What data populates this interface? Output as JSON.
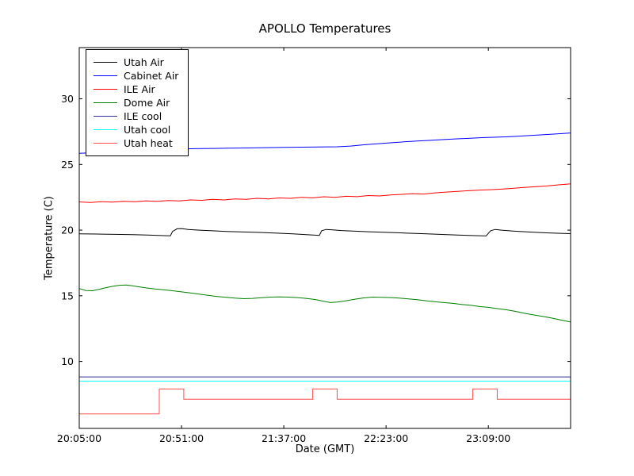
{
  "chart_data": {
    "type": "line",
    "title": "APOLLO Temperatures",
    "xlabel": "Date (GMT)",
    "ylabel": "Temperature (C)",
    "x_unit": "minutes after 20:05:00 GMT",
    "xlim": [
      0,
      221
    ],
    "ylim": [
      4.9,
      33.9
    ],
    "grid": false,
    "legend_position": "upper left",
    "frame_color": "#000000",
    "x_ticks": [
      {
        "pos": 0,
        "label": "20:05:00"
      },
      {
        "pos": 46,
        "label": "20:51:00"
      },
      {
        "pos": 92,
        "label": "21:37:00"
      },
      {
        "pos": 138,
        "label": "22:23:00"
      },
      {
        "pos": 184,
        "label": "23:09:00"
      }
    ],
    "y_ticks": [
      {
        "pos": 10,
        "label": "10"
      },
      {
        "pos": 15,
        "label": "15"
      },
      {
        "pos": 20,
        "label": "20"
      },
      {
        "pos": 25,
        "label": "25"
      },
      {
        "pos": 30,
        "label": "30"
      }
    ],
    "series": [
      {
        "name": "Utah Air",
        "color": "#000000",
        "points": [
          [
            0,
            19.72
          ],
          [
            8,
            19.7
          ],
          [
            16,
            19.68
          ],
          [
            24,
            19.66
          ],
          [
            32,
            19.62
          ],
          [
            38,
            19.58
          ],
          [
            41,
            19.57
          ],
          [
            42,
            19.9
          ],
          [
            44,
            20.1
          ],
          [
            46,
            20.12
          ],
          [
            49,
            20.05
          ],
          [
            54,
            20.0
          ],
          [
            60,
            19.95
          ],
          [
            66,
            19.9
          ],
          [
            72,
            19.87
          ],
          [
            80,
            19.83
          ],
          [
            88,
            19.78
          ],
          [
            96,
            19.72
          ],
          [
            102,
            19.66
          ],
          [
            106,
            19.62
          ],
          [
            108,
            19.6
          ],
          [
            109,
            19.95
          ],
          [
            111,
            20.05
          ],
          [
            114,
            20.02
          ],
          [
            118,
            19.97
          ],
          [
            124,
            19.92
          ],
          [
            130,
            19.88
          ],
          [
            138,
            19.83
          ],
          [
            146,
            19.78
          ],
          [
            154,
            19.73
          ],
          [
            162,
            19.68
          ],
          [
            170,
            19.63
          ],
          [
            178,
            19.58
          ],
          [
            183,
            19.56
          ],
          [
            185,
            19.95
          ],
          [
            187,
            20.05
          ],
          [
            190,
            20.0
          ],
          [
            195,
            19.93
          ],
          [
            202,
            19.86
          ],
          [
            209,
            19.8
          ],
          [
            215,
            19.76
          ],
          [
            221,
            19.73
          ]
        ]
      },
      {
        "name": "Cabinet Air",
        "color": "#0000ff",
        "points": [
          [
            0,
            25.85
          ],
          [
            4,
            25.88
          ],
          [
            8,
            25.9
          ],
          [
            12,
            25.98
          ],
          [
            16,
            26.02
          ],
          [
            22,
            26.06
          ],
          [
            28,
            26.1
          ],
          [
            34,
            26.13
          ],
          [
            40,
            26.16
          ],
          [
            46,
            26.18
          ],
          [
            52,
            26.2
          ],
          [
            60,
            26.22
          ],
          [
            68,
            26.24
          ],
          [
            76,
            26.26
          ],
          [
            84,
            26.28
          ],
          [
            92,
            26.3
          ],
          [
            100,
            26.32
          ],
          [
            108,
            26.33
          ],
          [
            116,
            26.35
          ],
          [
            122,
            26.4
          ],
          [
            128,
            26.5
          ],
          [
            134,
            26.58
          ],
          [
            140,
            26.65
          ],
          [
            146,
            26.72
          ],
          [
            152,
            26.78
          ],
          [
            158,
            26.84
          ],
          [
            164,
            26.9
          ],
          [
            170,
            26.95
          ],
          [
            176,
            27.0
          ],
          [
            182,
            27.05
          ],
          [
            188,
            27.08
          ],
          [
            194,
            27.12
          ],
          [
            200,
            27.18
          ],
          [
            206,
            27.24
          ],
          [
            212,
            27.3
          ],
          [
            217,
            27.35
          ],
          [
            221,
            27.4
          ]
        ]
      },
      {
        "name": "ILE Air",
        "color": "#ff0000",
        "points": [
          [
            0,
            22.15
          ],
          [
            5,
            22.1
          ],
          [
            10,
            22.17
          ],
          [
            15,
            22.13
          ],
          [
            20,
            22.2
          ],
          [
            25,
            22.16
          ],
          [
            30,
            22.22
          ],
          [
            35,
            22.19
          ],
          [
            40,
            22.26
          ],
          [
            45,
            22.22
          ],
          [
            50,
            22.3
          ],
          [
            55,
            22.27
          ],
          [
            60,
            22.34
          ],
          [
            65,
            22.3
          ],
          [
            70,
            22.38
          ],
          [
            75,
            22.34
          ],
          [
            80,
            22.42
          ],
          [
            85,
            22.38
          ],
          [
            90,
            22.45
          ],
          [
            95,
            22.42
          ],
          [
            100,
            22.5
          ],
          [
            105,
            22.46
          ],
          [
            110,
            22.54
          ],
          [
            115,
            22.5
          ],
          [
            120,
            22.58
          ],
          [
            125,
            22.55
          ],
          [
            130,
            22.63
          ],
          [
            135,
            22.6
          ],
          [
            140,
            22.68
          ],
          [
            145,
            22.72
          ],
          [
            150,
            22.78
          ],
          [
            155,
            22.75
          ],
          [
            160,
            22.84
          ],
          [
            165,
            22.9
          ],
          [
            170,
            22.95
          ],
          [
            175,
            23.0
          ],
          [
            180,
            23.05
          ],
          [
            185,
            23.08
          ],
          [
            190,
            23.12
          ],
          [
            195,
            23.18
          ],
          [
            200,
            23.25
          ],
          [
            205,
            23.3
          ],
          [
            210,
            23.36
          ],
          [
            215,
            23.44
          ],
          [
            221,
            23.52
          ]
        ]
      },
      {
        "name": "Dome Air",
        "color": "#008000",
        "points": [
          [
            0,
            15.55
          ],
          [
            3,
            15.4
          ],
          [
            6,
            15.38
          ],
          [
            9,
            15.5
          ],
          [
            12,
            15.62
          ],
          [
            15,
            15.72
          ],
          [
            18,
            15.8
          ],
          [
            21,
            15.82
          ],
          [
            24,
            15.76
          ],
          [
            27,
            15.68
          ],
          [
            30,
            15.6
          ],
          [
            34,
            15.52
          ],
          [
            38,
            15.46
          ],
          [
            42,
            15.38
          ],
          [
            46,
            15.3
          ],
          [
            50,
            15.22
          ],
          [
            54,
            15.12
          ],
          [
            58,
            15.04
          ],
          [
            62,
            14.95
          ],
          [
            66,
            14.88
          ],
          [
            70,
            14.82
          ],
          [
            74,
            14.78
          ],
          [
            78,
            14.8
          ],
          [
            82,
            14.85
          ],
          [
            86,
            14.9
          ],
          [
            90,
            14.92
          ],
          [
            94,
            14.9
          ],
          [
            98,
            14.86
          ],
          [
            102,
            14.8
          ],
          [
            106,
            14.72
          ],
          [
            110,
            14.58
          ],
          [
            113,
            14.48
          ],
          [
            116,
            14.52
          ],
          [
            120,
            14.62
          ],
          [
            124,
            14.74
          ],
          [
            128,
            14.84
          ],
          [
            132,
            14.9
          ],
          [
            136,
            14.88
          ],
          [
            140,
            14.86
          ],
          [
            144,
            14.82
          ],
          [
            148,
            14.76
          ],
          [
            152,
            14.7
          ],
          [
            156,
            14.62
          ],
          [
            160,
            14.54
          ],
          [
            164,
            14.48
          ],
          [
            168,
            14.42
          ],
          [
            172,
            14.34
          ],
          [
            176,
            14.28
          ],
          [
            180,
            14.18
          ],
          [
            184,
            14.12
          ],
          [
            188,
            14.02
          ],
          [
            192,
            13.94
          ],
          [
            196,
            13.82
          ],
          [
            200,
            13.68
          ],
          [
            204,
            13.55
          ],
          [
            208,
            13.44
          ],
          [
            212,
            13.32
          ],
          [
            216,
            13.18
          ],
          [
            221,
            13.0
          ]
        ]
      },
      {
        "name": "ILE cool",
        "color": "#333399",
        "points": [
          [
            0,
            8.82
          ],
          [
            221,
            8.82
          ]
        ]
      },
      {
        "name": "Utah cool",
        "color": "#00ffff",
        "points": [
          [
            0,
            8.5
          ],
          [
            221,
            8.5
          ]
        ]
      },
      {
        "name": "Utah heat",
        "color": "#ff4d4d",
        "points": [
          [
            0,
            6.0
          ],
          [
            36,
            6.0
          ],
          [
            36,
            7.9
          ],
          [
            47,
            7.9
          ],
          [
            47,
            7.12
          ],
          [
            105,
            7.12
          ],
          [
            105,
            7.9
          ],
          [
            116,
            7.9
          ],
          [
            116,
            7.12
          ],
          [
            177,
            7.12
          ],
          [
            177,
            7.9
          ],
          [
            188,
            7.9
          ],
          [
            188,
            7.12
          ],
          [
            221,
            7.12
          ]
        ]
      }
    ]
  }
}
